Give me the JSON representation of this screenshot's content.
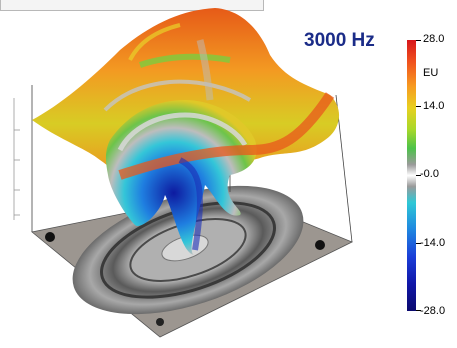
{
  "title": "3000 Hz",
  "colorbar": {
    "unit": "EU",
    "ticks": [
      "28.0",
      "14.0",
      "-0.0",
      "-14.0",
      "-28.0"
    ],
    "colors": [
      "#d7171b",
      "#f79a20",
      "#e8d020",
      "#4dc24a",
      "#ffffff",
      "#2ec8d6",
      "#1f86e0",
      "#0b0a6e"
    ]
  },
  "chart_data": {
    "type": "heatmap",
    "title": "3000 Hz",
    "colorbar_label": "EU",
    "colorbar_range": [
      -28.0,
      28.0
    ],
    "colorbar_ticks": [
      28.0,
      14.0,
      -0.0,
      -14.0,
      -28.0
    ]
  }
}
